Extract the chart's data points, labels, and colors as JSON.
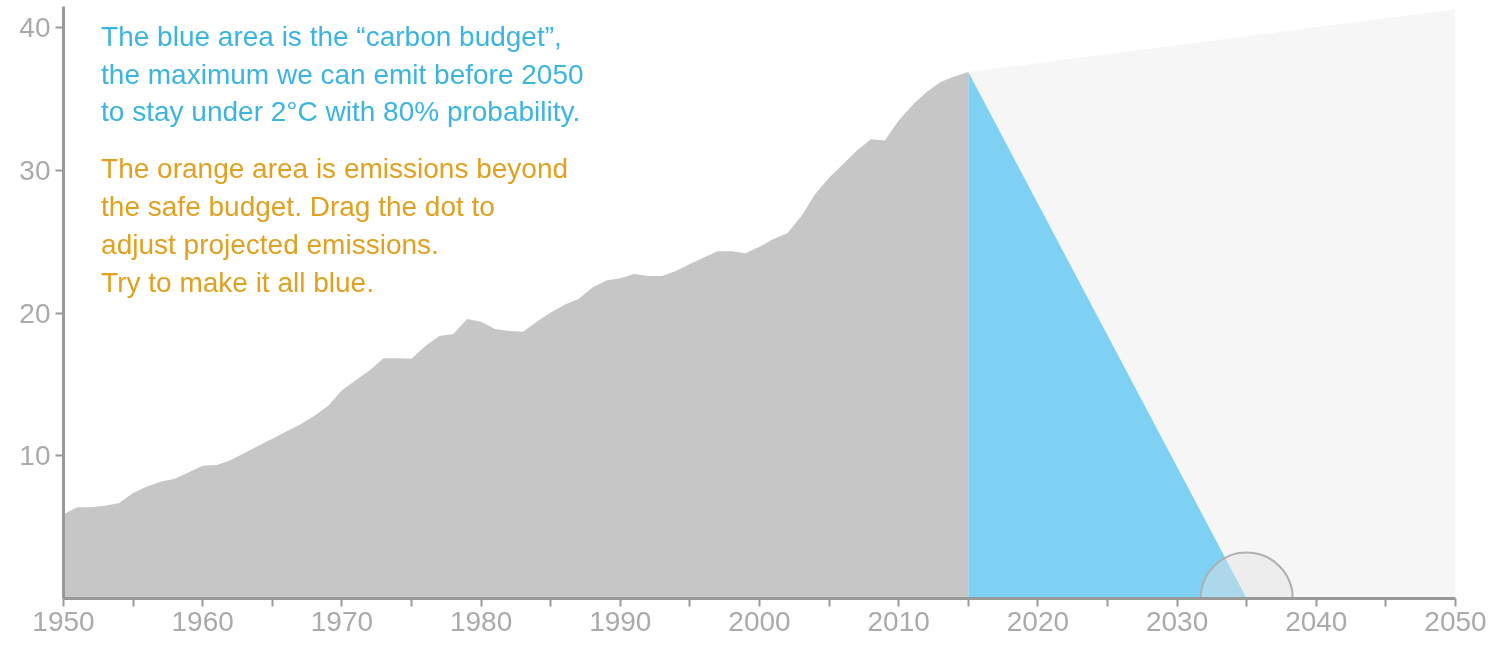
{
  "chart_data": {
    "type": "area",
    "xlim": [
      1950,
      2050
    ],
    "ylim": [
      0,
      41.5
    ],
    "xticks": [
      1950,
      {
        "value": 1955,
        "label": null
      },
      1960,
      {
        "value": 1965,
        "label": null
      },
      1970,
      {
        "value": 1975,
        "label": null
      },
      1980,
      {
        "value": 1985,
        "label": null
      },
      1990,
      {
        "value": 1995,
        "label": null
      },
      2000,
      {
        "value": 2005,
        "label": null
      },
      2010,
      {
        "value": 2015,
        "label": null
      },
      2020,
      {
        "value": 2025,
        "label": null
      },
      2030,
      {
        "value": 2035,
        "label": null
      },
      2040,
      {
        "value": 2045,
        "label": null
      },
      2050
    ],
    "yticks": [
      10,
      20,
      30,
      40
    ],
    "grid": false,
    "annotations": [
      "The blue area is the “carbon budget”,\nthe maximum we can emit before 2050\nto stay under 2°C with 80% probability.",
      "The orange area is emissions beyond\nthe safe budget. Drag the dot to\nadjust projected emissions.\nTry to make it all blue."
    ],
    "series": [
      {
        "x": [
          2015,
          2050
        ],
        "values": [
          36.9,
          41.3
        ],
        "color": "#f6f6f6"
      },
      {
        "x": [
          2015,
          2035
        ],
        "values": [
          36.9,
          0
        ],
        "color": "#7fd1f3"
      },
      {
        "x": [
          1950,
          1951,
          1952,
          1953,
          1954,
          1955,
          1956,
          1957,
          1958,
          1959,
          1960,
          1961,
          1962,
          1963,
          1964,
          1965,
          1966,
          1967,
          1968,
          1969,
          1970,
          1971,
          1972,
          1973,
          1974,
          1975,
          1976,
          1977,
          1978,
          1979,
          1980,
          1981,
          1982,
          1983,
          1984,
          1985,
          1986,
          1987,
          1988,
          1989,
          1990,
          1991,
          1992,
          1993,
          1994,
          1995,
          1996,
          1997,
          1998,
          1999,
          2000,
          2001,
          2002,
          2003,
          2004,
          2005,
          2006,
          2007,
          2008,
          2009,
          2010,
          2011,
          2012,
          2013,
          2014,
          2015
        ],
        "values": [
          5.9,
          6.4,
          6.4,
          6.5,
          6.7,
          7.4,
          7.85,
          8.2,
          8.4,
          8.85,
          9.3,
          9.35,
          9.7,
          10.2,
          10.7,
          11.2,
          11.7,
          12.2,
          12.8,
          13.5,
          14.6,
          15.3,
          16.0,
          16.85,
          16.85,
          16.8,
          17.7,
          18.4,
          18.55,
          19.6,
          19.4,
          18.9,
          18.75,
          18.7,
          19.4,
          20.05,
          20.6,
          21.0,
          21.8,
          22.3,
          22.45,
          22.75,
          22.6,
          22.6,
          22.95,
          23.45,
          23.9,
          24.35,
          24.35,
          24.2,
          24.65,
          25.2,
          25.6,
          26.8,
          28.35,
          29.5,
          30.45,
          31.4,
          32.2,
          32.1,
          33.5,
          34.6,
          35.5,
          36.2,
          36.6,
          36.9
        ],
        "color": "#c6c6c6"
      },
      {
        "type": "scatter",
        "marker": "circle",
        "x": [
          2035
        ],
        "values": [
          0
        ],
        "color": "#e2e2e2"
      }
    ]
  }
}
